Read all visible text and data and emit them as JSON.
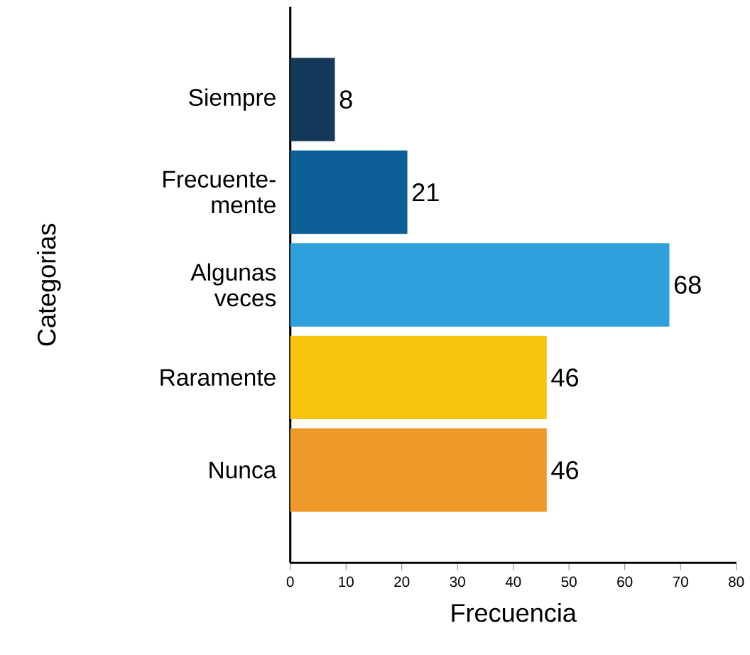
{
  "chart_data": {
    "type": "bar",
    "orientation": "horizontal",
    "xlabel": "Frecuencia",
    "ylabel": "Categorias",
    "categories": [
      "Siempre",
      "Frecuente-mente",
      "Algunas veces",
      "Raramente",
      "Nunca"
    ],
    "values": [
      8,
      21,
      68,
      46,
      46
    ],
    "colors": [
      "#14395a",
      "#0d5f97",
      "#2fa0dc",
      "#f8c30e",
      "#ee9a2b"
    ],
    "xlim": [
      0,
      80
    ],
    "xticks": [
      0,
      10,
      20,
      30,
      40,
      50,
      60,
      70,
      80
    ],
    "data_labels": true
  }
}
